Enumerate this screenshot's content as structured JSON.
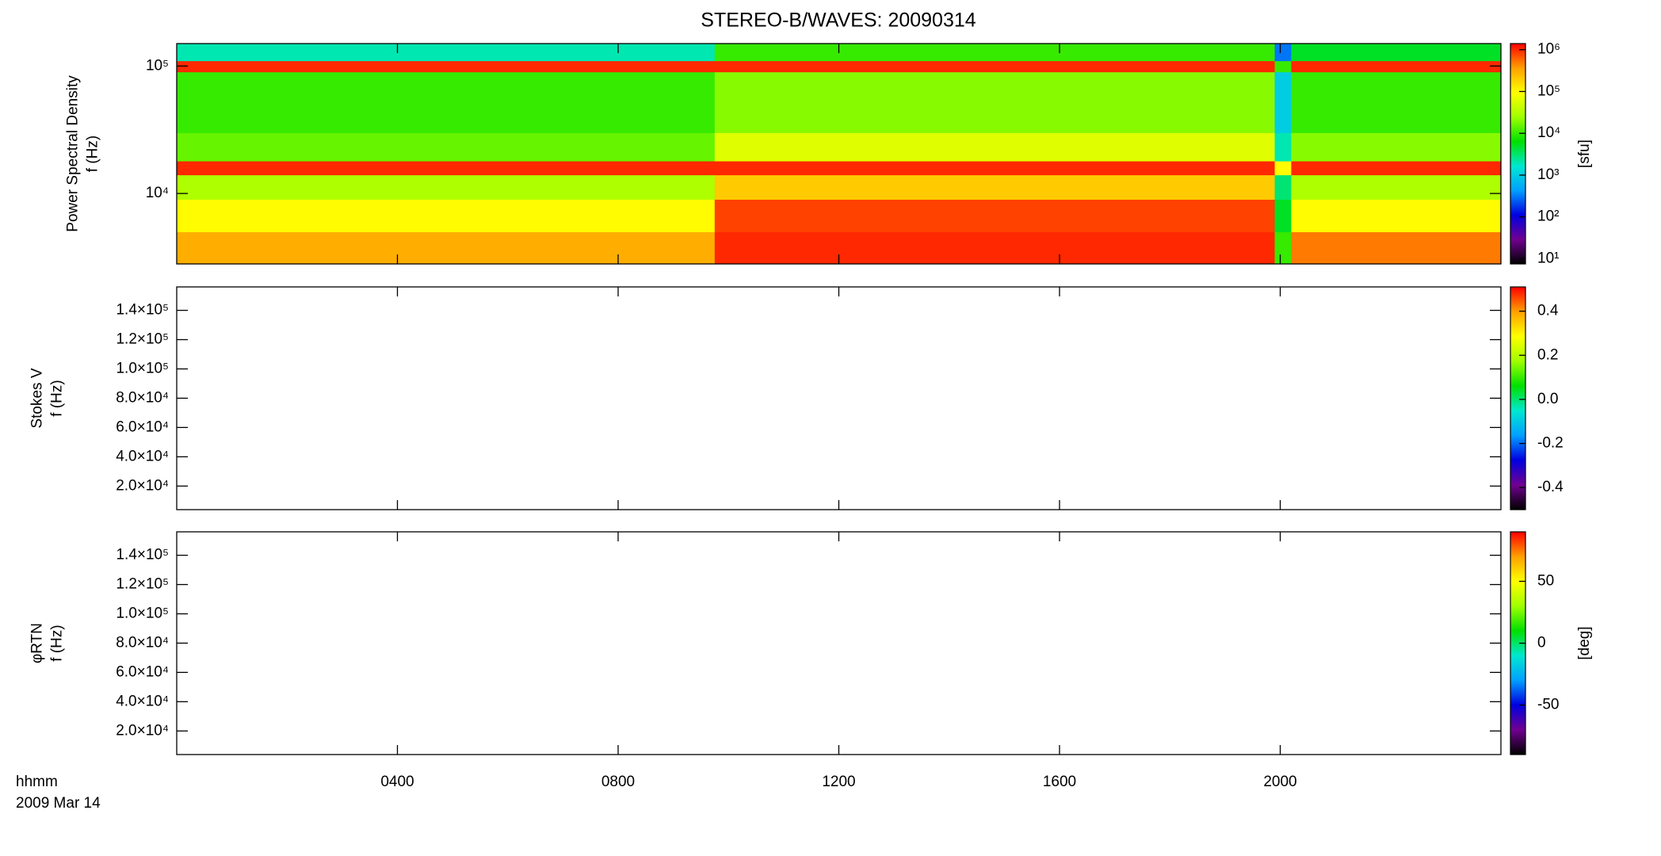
{
  "chart_data": [
    {
      "type": "heatmap",
      "title": "STEREO-B/WAVES: 20090314",
      "ylabel": [
        "Power Spectral Density",
        "f (Hz)"
      ],
      "colorbar_label": "[sfu]",
      "xlim": [
        0,
        24
      ],
      "xticks": [
        4,
        8,
        12,
        16,
        20
      ],
      "ylog": true,
      "ylim": [
        2800,
        150000
      ],
      "yticks": [
        {
          "value": 10000,
          "label": "10⁴"
        },
        {
          "value": 100000,
          "label": "10⁵"
        }
      ],
      "zlog": true,
      "zlim": [
        7.5,
        1400000
      ],
      "zticks": [
        {
          "value": 10,
          "label": "10¹"
        },
        {
          "value": 100,
          "label": "10²"
        },
        {
          "value": 1000,
          "label": "10³"
        },
        {
          "value": 10000,
          "label": "10⁴"
        },
        {
          "value": 100000,
          "label": "10⁵"
        },
        {
          "value": 1000000,
          "label": "10⁶"
        }
      ],
      "colormap": [
        "#000000",
        "#700090",
        "#0000e0",
        "#00a0ff",
        "#00e8d0",
        "#00e000",
        "#a0ff00",
        "#ffff00",
        "#ffa000",
        "#ff0000"
      ],
      "x_bins": [
        0,
        9.75,
        19.9,
        20.2,
        24
      ],
      "y_bins": [
        2800,
        5000,
        9000,
        14000,
        18000,
        30000,
        90000,
        110000,
        150000
      ],
      "values": [
        [
          300000,
          100000,
          30000,
          1000000,
          15000,
          10000,
          1000000,
          2000
        ],
        [
          1000000,
          800000,
          200000,
          1000000,
          60000,
          20000,
          1000000,
          10000
        ],
        [
          10000,
          5000,
          3000,
          100000,
          2000,
          1000,
          10000,
          300
        ],
        [
          500000,
          100000,
          30000,
          1000000,
          20000,
          10000,
          1000000,
          5000
        ]
      ]
    },
    {
      "type": "heatmap",
      "ylabel": [
        "Stokes V",
        "f (Hz)"
      ],
      "xlim": [
        0,
        24
      ],
      "xticks": [
        4,
        8,
        12,
        16,
        20
      ],
      "ylog": false,
      "ylim": [
        3900,
        156000
      ],
      "yticks": [
        {
          "value": 20000,
          "label": "2.0×10⁴"
        },
        {
          "value": 40000,
          "label": "4.0×10⁴"
        },
        {
          "value": 60000,
          "label": "6.0×10⁴"
        },
        {
          "value": 80000,
          "label": "8.0×10⁴"
        },
        {
          "value": 100000,
          "label": "1.0×10⁵"
        },
        {
          "value": 120000,
          "label": "1.2×10⁵"
        },
        {
          "value": 140000,
          "label": "1.4×10⁵"
        }
      ],
      "zlog": false,
      "zlim": [
        -0.5,
        0.51
      ],
      "zticks": [
        -0.4,
        -0.2,
        {
          "value": 0,
          "label": "0.0"
        },
        0.2,
        0.4
      ],
      "colormap": [
        "#000000",
        "#700090",
        "#0000e0",
        "#00a0ff",
        "#00e8d0",
        "#00e000",
        "#a0ff00",
        "#ffff00",
        "#ffa000",
        "#ff0000"
      ]
    },
    {
      "type": "heatmap",
      "ylabel": [
        "φRTN",
        "f (Hz)"
      ],
      "colorbar_label": "[deg]",
      "xlim": [
        0,
        24
      ],
      "xticks": [
        {
          "value": 4,
          "label": "0400"
        },
        {
          "value": 8,
          "label": "0800"
        },
        {
          "value": 12,
          "label": "1200"
        },
        {
          "value": 16,
          "label": "1600"
        },
        {
          "value": 20,
          "label": "2000"
        }
      ],
      "xlabel": [
        "hhmm",
        "2009 Mar 14"
      ],
      "ylog": false,
      "ylim": [
        3900,
        156000
      ],
      "yticks": [
        {
          "value": 20000,
          "label": "2.0×10⁴"
        },
        {
          "value": 40000,
          "label": "4.0×10⁴"
        },
        {
          "value": 60000,
          "label": "6.0×10⁴"
        },
        {
          "value": 80000,
          "label": "8.0×10⁴"
        },
        {
          "value": 100000,
          "label": "1.0×10⁵"
        },
        {
          "value": 120000,
          "label": "1.2×10⁵"
        },
        {
          "value": 140000,
          "label": "1.4×10⁵"
        }
      ],
      "zlog": false,
      "zlim": [
        -90,
        90
      ],
      "zticks": [
        -50,
        0,
        50
      ],
      "colormap": [
        "#000000",
        "#700090",
        "#0000e0",
        "#00a0ff",
        "#00e8d0",
        "#00e000",
        "#a0ff00",
        "#ffff00",
        "#ffa000",
        "#ff0000"
      ]
    }
  ]
}
